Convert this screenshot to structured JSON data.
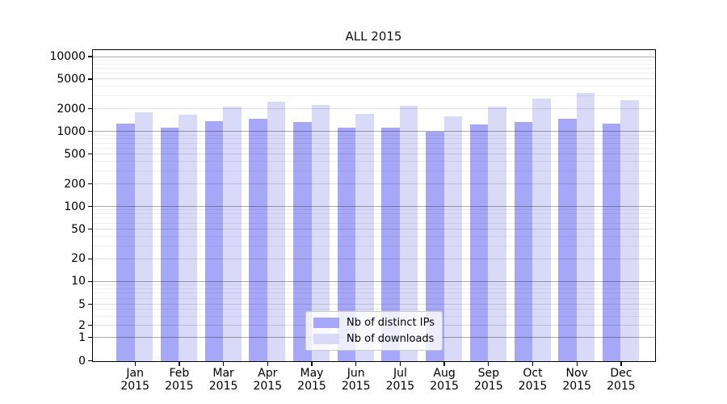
{
  "chart_data": {
    "type": "bar",
    "title": "ALL 2015",
    "categories": [
      "Jan",
      "Feb",
      "Mar",
      "Apr",
      "May",
      "Jun",
      "Jul",
      "Aug",
      "Sep",
      "Oct",
      "Nov",
      "Dec"
    ],
    "year": "2015",
    "series": [
      {
        "name": "Nb of distinct IPs",
        "color": "#a7a7f7",
        "values": [
          1300,
          1150,
          1400,
          1500,
          1350,
          1150,
          1150,
          1000,
          1250,
          1350,
          1500,
          1300
        ]
      },
      {
        "name": "Nb of downloads",
        "color": "#d9d9f8",
        "values": [
          1850,
          1700,
          2200,
          2500,
          2300,
          1750,
          2250,
          1600,
          2150,
          2800,
          3300,
          2650
        ]
      }
    ],
    "yticks": [
      10000,
      5000,
      2000,
      1000,
      500,
      200,
      100,
      50,
      20,
      10,
      5,
      2,
      1,
      0
    ],
    "yscale": "symlog",
    "ylim": [
      0,
      12000
    ],
    "xlabel": "",
    "ylabel": "",
    "grid": true,
    "legend_position": "lower center"
  }
}
